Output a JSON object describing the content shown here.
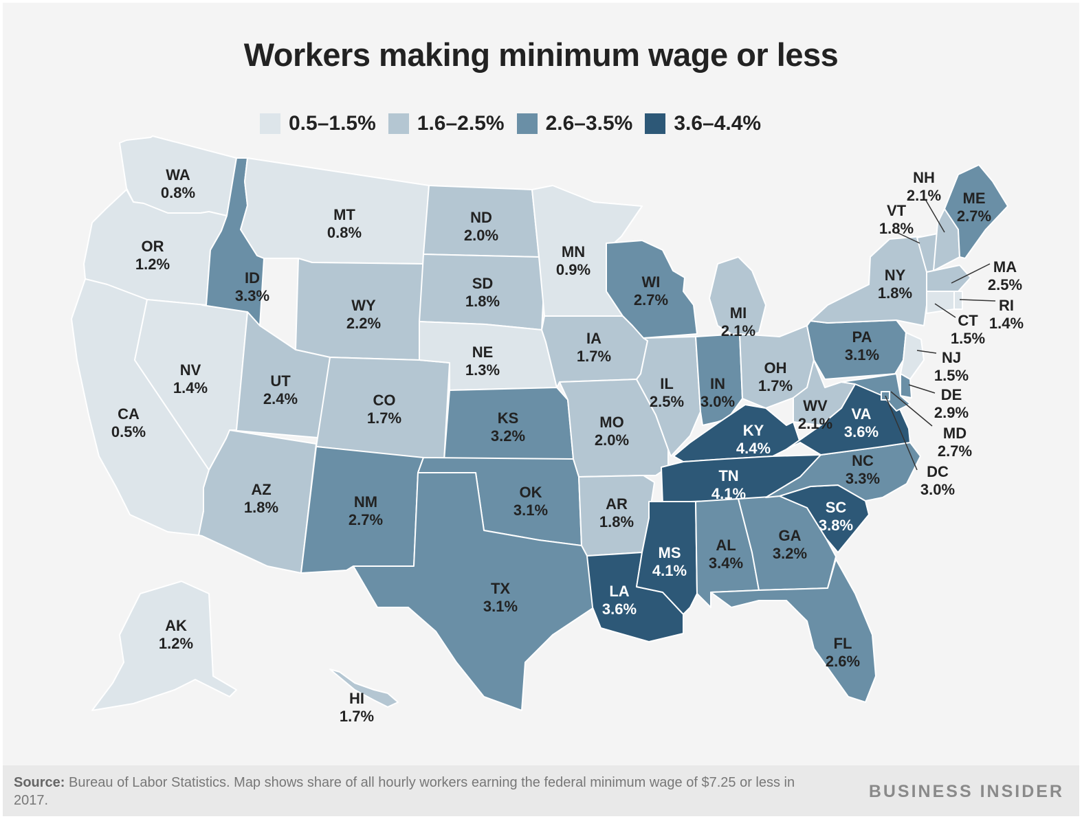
{
  "title": "Workers making minimum wage or less",
  "legend": [
    {
      "label": "0.5–1.5%",
      "color": "#dde5ea"
    },
    {
      "label": "1.6–2.5%",
      "color": "#b4c6d2"
    },
    {
      "label": "2.6–3.5%",
      "color": "#6a8fa6"
    },
    {
      "label": "3.6–4.4%",
      "color": "#2d5877"
    }
  ],
  "states": [
    {
      "abbr": "WA",
      "value": "0.8%",
      "bin": 0
    },
    {
      "abbr": "OR",
      "value": "1.2%",
      "bin": 0
    },
    {
      "abbr": "CA",
      "value": "0.5%",
      "bin": 0
    },
    {
      "abbr": "NV",
      "value": "1.4%",
      "bin": 0
    },
    {
      "abbr": "ID",
      "value": "3.3%",
      "bin": 2
    },
    {
      "abbr": "MT",
      "value": "0.8%",
      "bin": 0
    },
    {
      "abbr": "WY",
      "value": "2.2%",
      "bin": 1
    },
    {
      "abbr": "UT",
      "value": "2.4%",
      "bin": 1
    },
    {
      "abbr": "AZ",
      "value": "1.8%",
      "bin": 1
    },
    {
      "abbr": "CO",
      "value": "1.7%",
      "bin": 1
    },
    {
      "abbr": "NM",
      "value": "2.7%",
      "bin": 2
    },
    {
      "abbr": "ND",
      "value": "2.0%",
      "bin": 1
    },
    {
      "abbr": "SD",
      "value": "1.8%",
      "bin": 1
    },
    {
      "abbr": "NE",
      "value": "1.3%",
      "bin": 0
    },
    {
      "abbr": "KS",
      "value": "3.2%",
      "bin": 2
    },
    {
      "abbr": "OK",
      "value": "3.1%",
      "bin": 2
    },
    {
      "abbr": "TX",
      "value": "3.1%",
      "bin": 2
    },
    {
      "abbr": "MN",
      "value": "0.9%",
      "bin": 0
    },
    {
      "abbr": "IA",
      "value": "1.7%",
      "bin": 1
    },
    {
      "abbr": "MO",
      "value": "2.0%",
      "bin": 1
    },
    {
      "abbr": "AR",
      "value": "1.8%",
      "bin": 1
    },
    {
      "abbr": "LA",
      "value": "3.6%",
      "bin": 3
    },
    {
      "abbr": "WI",
      "value": "2.7%",
      "bin": 2
    },
    {
      "abbr": "IL",
      "value": "2.5%",
      "bin": 1
    },
    {
      "abbr": "MI",
      "value": "2.1%",
      "bin": 1
    },
    {
      "abbr": "IN",
      "value": "3.0%",
      "bin": 2
    },
    {
      "abbr": "OH",
      "value": "1.7%",
      "bin": 1
    },
    {
      "abbr": "KY",
      "value": "4.4%",
      "bin": 3
    },
    {
      "abbr": "TN",
      "value": "4.1%",
      "bin": 3
    },
    {
      "abbr": "MS",
      "value": "4.1%",
      "bin": 3
    },
    {
      "abbr": "AL",
      "value": "3.4%",
      "bin": 2
    },
    {
      "abbr": "GA",
      "value": "3.2%",
      "bin": 2
    },
    {
      "abbr": "FL",
      "value": "2.6%",
      "bin": 2
    },
    {
      "abbr": "SC",
      "value": "3.8%",
      "bin": 3
    },
    {
      "abbr": "NC",
      "value": "3.3%",
      "bin": 2
    },
    {
      "abbr": "VA",
      "value": "3.6%",
      "bin": 3
    },
    {
      "abbr": "WV",
      "value": "2.1%",
      "bin": 1
    },
    {
      "abbr": "PA",
      "value": "3.1%",
      "bin": 2
    },
    {
      "abbr": "NY",
      "value": "1.8%",
      "bin": 1
    },
    {
      "abbr": "VT",
      "value": "1.8%",
      "bin": 1
    },
    {
      "abbr": "NH",
      "value": "2.1%",
      "bin": 1
    },
    {
      "abbr": "ME",
      "value": "2.7%",
      "bin": 2
    },
    {
      "abbr": "MA",
      "value": "2.5%",
      "bin": 1
    },
    {
      "abbr": "RI",
      "value": "1.4%",
      "bin": 0
    },
    {
      "abbr": "CT",
      "value": "1.5%",
      "bin": 0
    },
    {
      "abbr": "NJ",
      "value": "1.5%",
      "bin": 0
    },
    {
      "abbr": "DE",
      "value": "2.9%",
      "bin": 2
    },
    {
      "abbr": "MD",
      "value": "2.7%",
      "bin": 2
    },
    {
      "abbr": "DC",
      "value": "3.0%",
      "bin": 2
    },
    {
      "abbr": "AK",
      "value": "1.2%",
      "bin": 0
    },
    {
      "abbr": "HI",
      "value": "1.7%",
      "bin": 1
    }
  ],
  "footer": {
    "source_label": "Source:",
    "source_text": " Bureau of Labor Statistics. Map shows share of all hourly workers earning the federal minimum wage of $7.25 or less in 2017.",
    "brand": "BUSINESS INSIDER"
  }
}
